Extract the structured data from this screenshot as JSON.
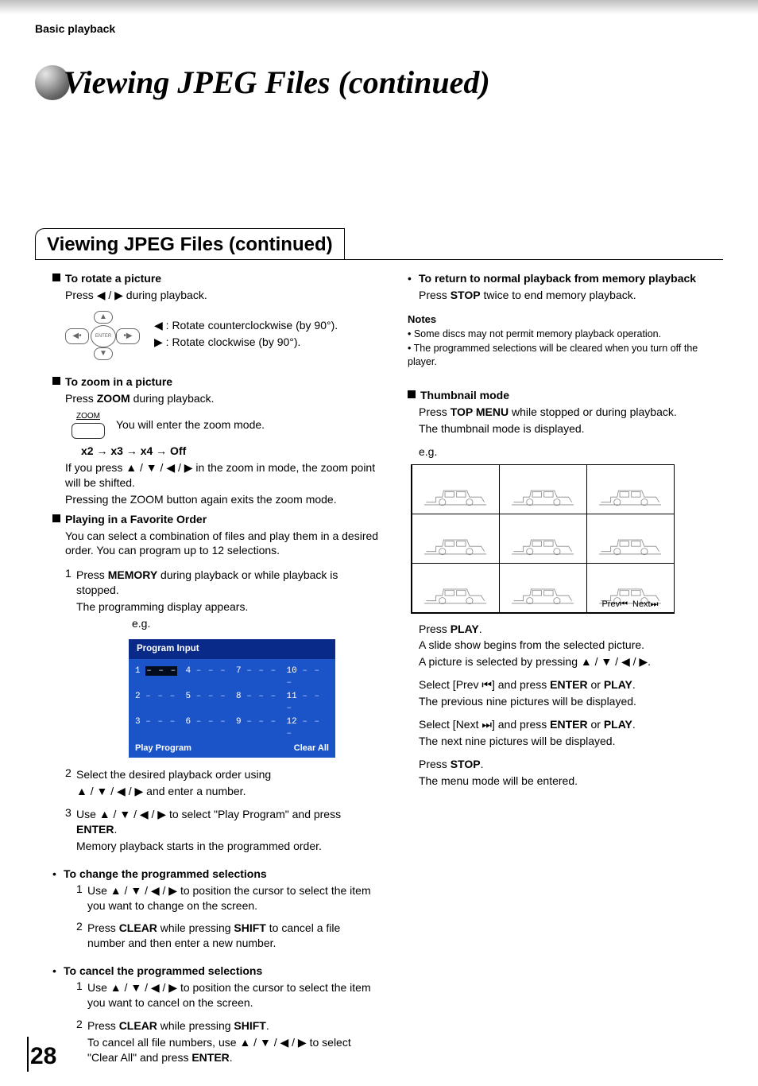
{
  "page": {
    "section_label": "Basic playback",
    "main_title": "Viewing JPEG Files (continued)",
    "box_title": "Viewing JPEG Files (continued)",
    "page_number": "28"
  },
  "left": {
    "rotate": {
      "heading": "To rotate a picture",
      "line1_pre": "Press ",
      "line1_sym": "◀ / ▶",
      "line1_post": " during playback.",
      "ccw_sym": "◀",
      "ccw": " : Rotate counterclockwise (by 90°).",
      "cw_sym": "▶",
      "cw": " : Rotate clockwise (by 90°)."
    },
    "zoom": {
      "heading": "To zoom in a picture",
      "line1_pre": "Press ",
      "line1_b": "ZOOM",
      "line1_post": " during playback.",
      "btn_label": "ZOOM",
      "enter_text": "You will enter the zoom mode.",
      "chain": "x2 → x3 → x4 → Off",
      "shift_pre": "If you press ",
      "shift_sym": "▲ / ▼ / ◀ / ▶",
      "shift_post": " in the zoom in mode, the zoom point will be shifted.",
      "exit": "Pressing the ZOOM button again exits the zoom mode."
    },
    "fav": {
      "heading": "Playing in a Favorite Order",
      "desc": "You can select a combination of files and play them in a desired order. You can program up to 12 selections.",
      "step1_n": "1",
      "step1_pre": "Press ",
      "step1_b": "MEMORY",
      "step1_post": " during playback or while playback is stopped.",
      "step1_app": "The programming display appears.",
      "eg": "e.g.",
      "prog_title": "Program Input",
      "cells": [
        {
          "n": "1",
          "d": "– – –",
          "sel": true
        },
        {
          "n": "4",
          "d": "– – –"
        },
        {
          "n": "7",
          "d": "– – –"
        },
        {
          "n": "10",
          "d": "– – –"
        },
        {
          "n": "2",
          "d": "– – –"
        },
        {
          "n": "5",
          "d": "– – –"
        },
        {
          "n": "8",
          "d": "– – –"
        },
        {
          "n": "11",
          "d": "– – –"
        },
        {
          "n": "3",
          "d": "– – –"
        },
        {
          "n": "6",
          "d": "– – –"
        },
        {
          "n": "9",
          "d": "– – –"
        },
        {
          "n": "12",
          "d": "– – –"
        }
      ],
      "foot_left": "Play  Program",
      "foot_right": "Clear All",
      "step2_n": "2",
      "step2_a": "Select the desired playback order using",
      "step2_sym": "▲ / ▼ / ◀ / ▶",
      "step2_b": " and enter a number.",
      "step3_n": "3",
      "step3_pre": "Use ",
      "step3_sym": "▲ / ▼ / ◀ / ▶",
      "step3_mid": " to select \"Play Program\" and press ",
      "step3_b": "ENTER",
      "step3_post": ".",
      "step3_res": "Memory playback starts in the programmed order."
    },
    "change": {
      "bullet": "•",
      "heading": "To change the programmed selections",
      "s1_n": "1",
      "s1_pre": "Use ",
      "s1_sym": "▲ / ▼ / ◀ / ▶",
      "s1_post": " to position the cursor to select the item you want to change on the screen.",
      "s2_n": "2",
      "s2_pre": "Press ",
      "s2_b1": "CLEAR",
      "s2_mid": " while pressing ",
      "s2_b2": "SHIFT",
      "s2_post": " to cancel a file number and then enter a new number."
    },
    "cancel": {
      "bullet": "•",
      "heading": "To cancel the programmed selections",
      "s1_n": "1",
      "s1_pre": "Use ",
      "s1_sym": "▲ / ▼ / ◀ / ▶",
      "s1_post": " to position the cursor to select the item you want to cancel on the screen.",
      "s2_n": "2",
      "s2_pre": "Press ",
      "s2_b1": "CLEAR",
      "s2_mid": " while pressing ",
      "s2_b2": "SHIFT",
      "s2_post1": ".",
      "s2_line2_pre": "To cancel all file numbers, use ",
      "s2_line2_sym": "▲ / ▼ / ◀ / ▶",
      "s2_line2_mid": " to select \"Clear All\" and press ",
      "s2_line2_b": "ENTER",
      "s2_line2_post": "."
    }
  },
  "right": {
    "ret": {
      "bullet": "•",
      "heading": "To return to normal playback from memory playback",
      "pre": "Press ",
      "b": "STOP",
      "post": " twice to end memory playback."
    },
    "notes": {
      "title": "Notes",
      "n1": "• Some discs may not permit memory playback operation.",
      "n2": "• The programmed selections will be cleared when you turn off the player."
    },
    "thumb": {
      "heading": "Thumbnail mode",
      "l1_pre": "Press ",
      "l1_b": "TOP MENU",
      "l1_post": " while stopped or during playback.",
      "l2": "The thumbnail mode is displayed.",
      "eg": "e.g.",
      "prev": "Prev",
      "prev_sym": "⏮",
      "next": "Next",
      "next_sym": "⏭",
      "p_play_pre": "Press ",
      "p_play_b": "PLAY",
      "p_play_post": ".",
      "p_slide": "A slide show begins from the selected picture.",
      "p_sel_pre": "A picture is selected by pressing ",
      "p_sel_sym": "▲ / ▼ / ◀ / ▶",
      "p_sel_post": ".",
      "p_prev_pre": "Select [Prev ",
      "p_prev_sym": "⏮",
      "p_prev_mid": "] and press ",
      "p_prev_b1": "ENTER",
      "p_prev_or": " or ",
      "p_prev_b2": "PLAY",
      "p_prev_post": ".",
      "p_prev_res": "The previous nine pictures will be displayed.",
      "p_next_pre": "Select [Next ",
      "p_next_sym": "⏭",
      "p_next_mid": "] and press ",
      "p_next_b1": "ENTER",
      "p_next_or": " or ",
      "p_next_b2": "PLAY",
      "p_next_post": ".",
      "p_next_res": "The next nine pictures will be displayed.",
      "p_stop_pre": "Press ",
      "p_stop_b": "STOP",
      "p_stop_post": ".",
      "p_stop_res": "The menu mode will be entered."
    }
  },
  "colors": {
    "prog_head_bg": "#0a2a8a",
    "prog_body_bg": "#1a54c8"
  }
}
